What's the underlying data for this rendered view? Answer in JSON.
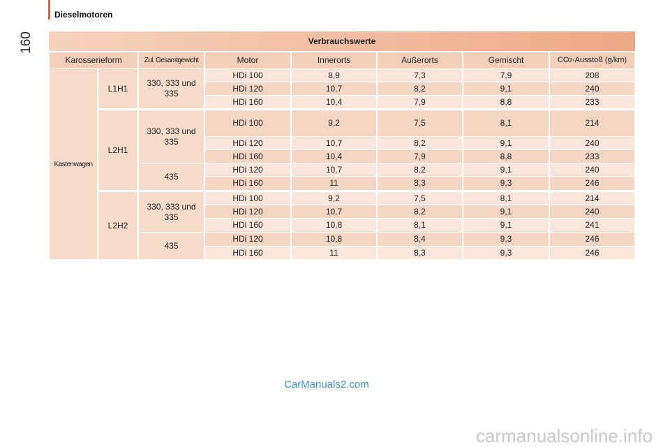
{
  "header": {
    "page_number": "160",
    "section": "Dieselmotoren"
  },
  "table": {
    "title": "Verbrauchswerte",
    "columns": [
      "Karosserieform",
      "Zul. Gesamtgewicht",
      "Motor",
      "Innerorts",
      "Außerorts",
      "Gemischt"
    ],
    "co2_column": {
      "prefix": "CO",
      "subscript": "2",
      "suffix": "-Ausstoß (g/km)"
    },
    "body": "Kastenwagen",
    "variants": [
      {
        "name": "L1H1",
        "weights": [
          {
            "name": "330, 333 und 335",
            "rows": [
              [
                "HDi 100",
                "8,9",
                "7,3",
                "7,9",
                "208"
              ],
              [
                "HDi 120",
                "10,7",
                "8,2",
                "9,1",
                "240"
              ],
              [
                "HDi 160",
                "10,4",
                "7,9",
                "8,8",
                "233"
              ]
            ]
          }
        ]
      },
      {
        "name": "L2H1",
        "weights": [
          {
            "name": "330, 333 und 335",
            "rows": [
              [
                "HDi 100",
                "9,2",
                "7,5",
                "8,1",
                "214"
              ],
              [
                "HDi 120",
                "10,7",
                "8,2",
                "9,1",
                "240"
              ],
              [
                "HDi 160",
                "10,4",
                "7,9",
                "8,8",
                "233"
              ]
            ]
          },
          {
            "name": "435",
            "rows": [
              [
                "HDi 120",
                "10,7",
                "8,2",
                "9,1",
                "240"
              ],
              [
                "HDi 160",
                "11",
                "8,3",
                "9,3",
                "246"
              ]
            ]
          }
        ]
      },
      {
        "name": "L2H2",
        "weights": [
          {
            "name": "330, 333 und 335",
            "rows": [
              [
                "HDi 100",
                "9,2",
                "7,5",
                "8,1",
                "214"
              ],
              [
                "HDi 120",
                "10,7",
                "8,2",
                "9,1",
                "240"
              ],
              [
                "HDi 160",
                "10,8",
                "8,1",
                "9,1",
                "241"
              ]
            ]
          },
          {
            "name": "435",
            "rows": [
              [
                "HDi 120",
                "10,8",
                "8,4",
                "9,3",
                "246"
              ],
              [
                "HDi 160",
                "11",
                "8,3",
                "9,3",
                "246"
              ]
            ]
          }
        ]
      }
    ]
  },
  "watermarks": [
    "CarManuals2.com",
    "carmanualsonline.info"
  ]
}
